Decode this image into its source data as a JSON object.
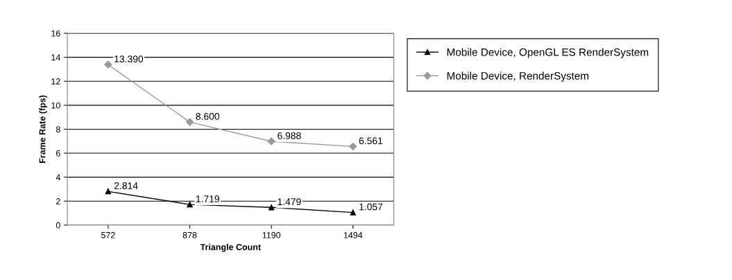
{
  "chart_data": {
    "type": "line",
    "xlabel": "Triangle Count",
    "ylabel": "Frame Rate (fps)",
    "categories": [
      "572",
      "878",
      "1190",
      "1494"
    ],
    "series": [
      {
        "name": "Mobile Device, OpenGL ES RenderSystem",
        "color": "#000000",
        "marker": "triangle",
        "values": [
          2.814,
          1.719,
          1.479,
          1.057
        ],
        "value_labels": [
          "2.814",
          "1.719",
          "1.479",
          "1.057"
        ]
      },
      {
        "name": "Mobile Device, RenderSystem",
        "color": "#999999",
        "marker": "diamond",
        "values": [
          13.39,
          8.6,
          6.988,
          6.561
        ],
        "value_labels": [
          "13.390",
          "8.600",
          "6.988",
          "6.561"
        ]
      }
    ],
    "ylim": [
      0,
      16
    ],
    "yticks": [
      0,
      2,
      4,
      6,
      8,
      10,
      12,
      14,
      16
    ],
    "grid": "y",
    "legend": "right",
    "line_style": "solid"
  }
}
